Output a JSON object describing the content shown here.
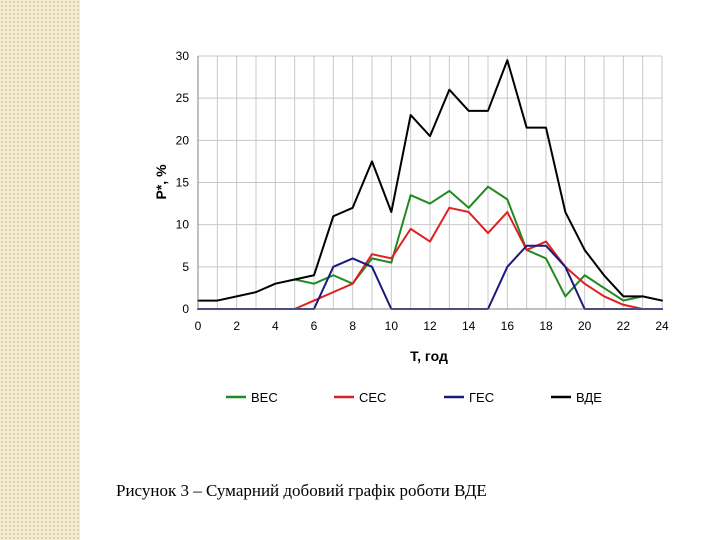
{
  "chart_data": {
    "type": "line",
    "title": "",
    "xlabel": "T, год",
    "ylabel": "P*, %",
    "xlim": [
      0,
      24
    ],
    "ylim": [
      0,
      30
    ],
    "xticks": [
      0,
      2,
      4,
      6,
      8,
      10,
      12,
      14,
      16,
      18,
      20,
      22,
      24
    ],
    "yticks": [
      0,
      5,
      10,
      15,
      20,
      25,
      30
    ],
    "grid": true,
    "legend_position": "bottom",
    "series": [
      {
        "name": "ВЕС",
        "color": "#1f8a1f",
        "points": [
          [
            5,
            3.5
          ],
          [
            6,
            3
          ],
          [
            7,
            4
          ],
          [
            8,
            3
          ],
          [
            9,
            6
          ],
          [
            10,
            5.5
          ],
          [
            11,
            13.5
          ],
          [
            12,
            12.5
          ],
          [
            13,
            14
          ],
          [
            14,
            12
          ],
          [
            15,
            14.5
          ],
          [
            16,
            13
          ],
          [
            17,
            7
          ],
          [
            18,
            6
          ],
          [
            19,
            1.5
          ],
          [
            20,
            4
          ],
          [
            21,
            2.5
          ],
          [
            22,
            1
          ],
          [
            23,
            1.5
          ]
        ]
      },
      {
        "name": "СЕС",
        "color": "#e02020",
        "points": [
          [
            5,
            0
          ],
          [
            6,
            1
          ],
          [
            7,
            2
          ],
          [
            8,
            3
          ],
          [
            9,
            6.5
          ],
          [
            10,
            6
          ],
          [
            11,
            9.5
          ],
          [
            12,
            8
          ],
          [
            13,
            12
          ],
          [
            14,
            11.5
          ],
          [
            15,
            9
          ],
          [
            16,
            11.5
          ],
          [
            17,
            7
          ],
          [
            18,
            8
          ],
          [
            19,
            5
          ],
          [
            20,
            3
          ],
          [
            21,
            1.5
          ],
          [
            22,
            0.5
          ],
          [
            23,
            0
          ]
        ]
      },
      {
        "name": "ГЕС",
        "color": "#1a1a7a",
        "points": [
          [
            0,
            0
          ],
          [
            6,
            0
          ],
          [
            7,
            5
          ],
          [
            8,
            6
          ],
          [
            9,
            5
          ],
          [
            10,
            0
          ],
          [
            15,
            0
          ],
          [
            16,
            5
          ],
          [
            17,
            7.5
          ],
          [
            18,
            7.5
          ],
          [
            19,
            5
          ],
          [
            20,
            0
          ],
          [
            24,
            0
          ]
        ]
      },
      {
        "name": "ВДЕ",
        "color": "#000000",
        "points": [
          [
            0,
            1
          ],
          [
            1,
            1
          ],
          [
            2,
            1.5
          ],
          [
            3,
            2
          ],
          [
            4,
            3
          ],
          [
            5,
            3.5
          ],
          [
            6,
            4
          ],
          [
            7,
            11
          ],
          [
            8,
            12
          ],
          [
            9,
            17.5
          ],
          [
            10,
            11.5
          ],
          [
            11,
            23
          ],
          [
            12,
            20.5
          ],
          [
            13,
            26
          ],
          [
            14,
            23.5
          ],
          [
            15,
            23.5
          ],
          [
            16,
            29.5
          ],
          [
            17,
            21.5
          ],
          [
            18,
            21.5
          ],
          [
            19,
            11.5
          ],
          [
            20,
            7
          ],
          [
            21,
            4
          ],
          [
            22,
            1.5
          ],
          [
            23,
            1.5
          ],
          [
            24,
            1
          ]
        ]
      }
    ]
  },
  "caption": "Рисунок 3 – Сумарний добовий графік роботи ВДЕ"
}
